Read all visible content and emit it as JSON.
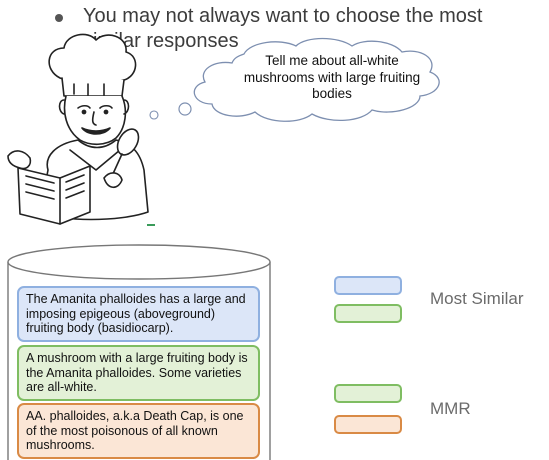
{
  "bullet": {
    "text": "You may not always want to choose the most similar  responses"
  },
  "thought_bubble": {
    "text": "Tell me about all-white mushrooms with large fruiting bodies"
  },
  "documents": [
    {
      "text": "The Amanita phalloides has a large and imposing epigeous (aboveground) fruiting body (basidiocarp)."
    },
    {
      "text": "A mushroom with a large fruiting body is the Amanita phalloides. Some varieties are all-white."
    },
    {
      "text": "AA. phalloides, a.k.a Death Cap, is one of the most poisonous of all known mushrooms."
    }
  ],
  "legend": {
    "most_similar_label": "Most Similar",
    "mmr_label": "MMR"
  },
  "colors": {
    "blue": "#dce6f8",
    "green": "#e3f1d7",
    "orange": "#fbe6d6"
  }
}
